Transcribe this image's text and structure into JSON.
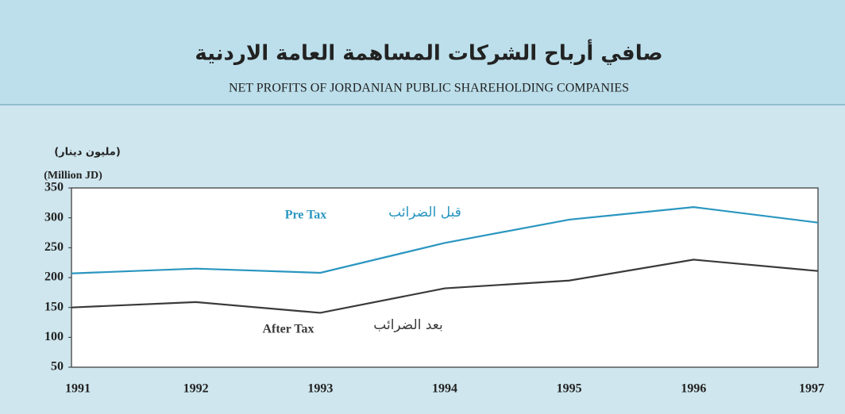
{
  "chart_data": {
    "type": "line",
    "title": "صافي أرباح الشركات المساهمة العامة الاردنية",
    "subtitle": "NET PROFITS OF JORDANIAN PUBLIC SHAREHOLDING COMPANIES",
    "y_label_ar": "(مليون دينار)",
    "y_label": "(Million JD)",
    "categories": [
      "1991",
      "1992",
      "1993",
      "1994",
      "1995",
      "1996",
      "1997"
    ],
    "series": [
      {
        "name": "Pre Tax",
        "name_ar": "قبل الضرائب",
        "color": "#2a96c0",
        "values": [
          207,
          215,
          208,
          258,
          297,
          318,
          292
        ]
      },
      {
        "name": "After Tax",
        "name_ar": "بعد الضرائب",
        "color": "#3a3a3a",
        "values": [
          150,
          159,
          141,
          182,
          195,
          230,
          211
        ]
      }
    ],
    "ylim": [
      50,
      350
    ],
    "yticks": [
      50,
      100,
      150,
      200,
      250,
      300,
      350
    ],
    "grid": false
  }
}
